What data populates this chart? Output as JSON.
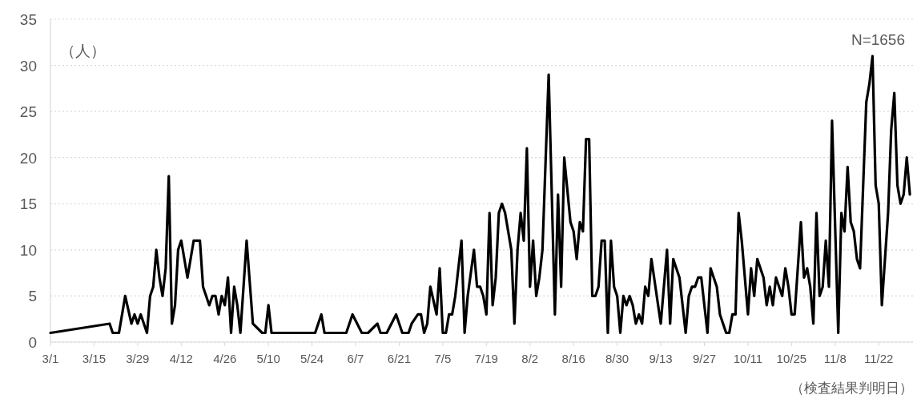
{
  "chart_data": {
    "type": "line",
    "annotations": [
      "（人）",
      "N=1656",
      "（検査結果判明日）"
    ],
    "xlim": [
      "--03-01",
      "--12-03"
    ],
    "xticks": [
      {
        "value": "--03-01",
        "label": "3/1"
      },
      {
        "value": "--03-15",
        "label": "3/15"
      },
      {
        "value": "--03-29",
        "label": "3/29"
      },
      {
        "value": "--04-12",
        "label": "4/12"
      },
      {
        "value": "--04-26",
        "label": "4/26"
      },
      {
        "value": "--05-10",
        "label": "5/10"
      },
      {
        "value": "--05-24",
        "label": "5/24"
      },
      {
        "value": "--06-07",
        "label": "6/7"
      },
      {
        "value": "--06-21",
        "label": "6/21"
      },
      {
        "value": "--07-05",
        "label": "7/5"
      },
      {
        "value": "--07-19",
        "label": "7/19"
      },
      {
        "value": "--08-02",
        "label": "8/2"
      },
      {
        "value": "--08-16",
        "label": "8/16"
      },
      {
        "value": "--08-30",
        "label": "8/30"
      },
      {
        "value": "--09-13",
        "label": "9/13"
      },
      {
        "value": "--09-27",
        "label": "9/27"
      },
      {
        "value": "--10-11",
        "label": "10/11"
      },
      {
        "value": "--10-25",
        "label": "10/25"
      },
      {
        "value": "--11-08",
        "label": "11/8"
      },
      {
        "value": "--11-22",
        "label": "11/22"
      }
    ],
    "ylim": [
      0,
      35
    ],
    "yticks": [
      0,
      5,
      10,
      15,
      20,
      25,
      30,
      35
    ],
    "grid": "y",
    "series": [
      {
        "color": "#000000",
        "x": [
          "--03-01",
          "--03-20",
          "--03-21",
          "--03-23",
          "--03-25",
          "--03-27",
          "--03-28",
          "--03-29",
          "--03-30",
          "--04-01",
          "--04-02",
          "--04-03",
          "--04-04",
          "--04-05",
          "--04-06",
          "--04-07",
          "--04-08",
          "--04-09",
          "--04-10",
          "--04-11",
          "--04-12",
          "--04-14",
          "--04-16",
          "--04-18",
          "--04-19",
          "--04-21",
          "--04-22",
          "--04-23",
          "--04-24",
          "--04-25",
          "--04-26",
          "--04-27",
          "--04-28",
          "--04-29",
          "--04-30",
          "--05-01",
          "--05-03",
          "--05-05",
          "--05-08",
          "--05-09",
          "--05-10",
          "--05-11",
          "--05-25",
          "--05-27",
          "--05-28",
          "--06-04",
          "--06-06",
          "--06-09",
          "--06-11",
          "--06-14",
          "--06-15",
          "--06-17",
          "--06-20",
          "--06-22",
          "--06-24",
          "--06-25",
          "--06-27",
          "--06-28",
          "--06-29",
          "--06-30",
          "--07-01",
          "--07-03",
          "--07-04",
          "--07-05",
          "--07-06",
          "--07-07",
          "--07-08",
          "--07-09",
          "--07-11",
          "--07-12",
          "--07-13",
          "--07-15",
          "--07-16",
          "--07-17",
          "--07-18",
          "--07-19",
          "--07-20",
          "--07-21",
          "--07-22",
          "--07-23",
          "--07-24",
          "--07-25",
          "--07-27",
          "--07-28",
          "--07-29",
          "--07-30",
          "--07-31",
          "--08-01",
          "--08-02",
          "--08-03",
          "--08-04",
          "--08-05",
          "--08-06",
          "--08-08",
          "--08-10",
          "--08-11",
          "--08-12",
          "--08-13",
          "--08-15",
          "--08-16",
          "--08-17",
          "--08-18",
          "--08-19",
          "--08-20",
          "--08-21",
          "--08-22",
          "--08-23",
          "--08-24",
          "--08-25",
          "--08-26",
          "--08-27",
          "--08-28",
          "--08-29",
          "--08-30",
          "--08-31",
          "--09-01",
          "--09-02",
          "--09-03",
          "--09-04",
          "--09-05",
          "--09-06",
          "--09-07",
          "--09-08",
          "--09-09",
          "--09-10",
          "--09-13",
          "--09-15",
          "--09-16",
          "--09-17",
          "--09-19",
          "--09-21",
          "--09-22",
          "--09-23",
          "--09-24",
          "--09-25",
          "--09-26",
          "--09-28",
          "--09-29",
          "--10-01",
          "--10-02",
          "--10-04",
          "--10-05",
          "--10-06",
          "--10-07",
          "--10-08",
          "--10-09",
          "--10-11",
          "--10-12",
          "--10-13",
          "--10-14",
          "--10-16",
          "--10-17",
          "--10-18",
          "--10-19",
          "--10-20",
          "--10-21",
          "--10-22",
          "--10-23",
          "--10-24",
          "--10-25",
          "--10-26",
          "--10-28",
          "--10-29",
          "--10-30",
          "--10-31",
          "--11-01",
          "--11-02",
          "--11-03",
          "--11-04",
          "--11-05",
          "--11-06",
          "--11-07",
          "--11-09",
          "--11-10",
          "--11-11",
          "--11-12",
          "--11-13",
          "--11-14",
          "--11-15",
          "--11-16",
          "--11-18",
          "--11-19",
          "--11-20",
          "--11-21",
          "--11-22",
          "--11-23",
          "--11-25",
          "--11-26",
          "--11-27",
          "--11-28",
          "--11-29",
          "--11-30",
          "--12-01",
          "--12-02"
        ],
        "values": [
          1,
          2,
          1,
          1,
          5,
          2,
          3,
          2,
          3,
          1,
          5,
          6,
          10,
          7,
          5,
          8,
          18,
          2,
          4,
          10,
          11,
          7,
          11,
          11,
          6,
          4,
          5,
          5,
          3,
          5,
          4,
          7,
          1,
          6,
          4,
          1,
          11,
          2,
          1,
          1,
          4,
          1,
          1,
          3,
          1,
          1,
          3,
          1,
          1,
          2,
          1,
          1,
          3,
          1,
          1,
          2,
          3,
          3,
          1,
          2,
          6,
          3,
          8,
          1,
          1,
          3,
          3,
          5,
          11,
          1,
          5,
          10,
          6,
          6,
          5,
          3,
          14,
          4,
          7,
          14,
          15,
          14,
          10,
          2,
          10,
          14,
          11,
          21,
          6,
          11,
          5,
          7,
          10,
          29,
          3,
          16,
          6,
          20,
          13,
          12,
          9,
          13,
          12,
          22,
          22,
          5,
          5,
          6,
          11,
          11,
          1,
          11,
          6,
          5,
          1,
          5,
          4,
          5,
          4,
          2,
          3,
          2,
          6,
          5,
          9,
          2,
          10,
          2,
          9,
          7,
          1,
          5,
          6,
          6,
          7,
          7,
          1,
          8,
          6,
          3,
          1,
          1,
          3,
          3,
          14,
          11,
          3,
          8,
          5,
          9,
          7,
          4,
          6,
          4,
          7,
          6,
          5,
          8,
          6,
          3,
          3,
          13,
          7,
          8,
          6,
          2,
          14,
          5,
          6,
          11,
          6,
          24,
          1,
          14,
          12,
          19,
          13,
          12,
          9,
          8,
          26,
          28,
          31,
          17,
          15,
          4,
          14,
          23,
          27,
          17,
          15,
          16,
          20,
          16
        ]
      }
    ]
  }
}
